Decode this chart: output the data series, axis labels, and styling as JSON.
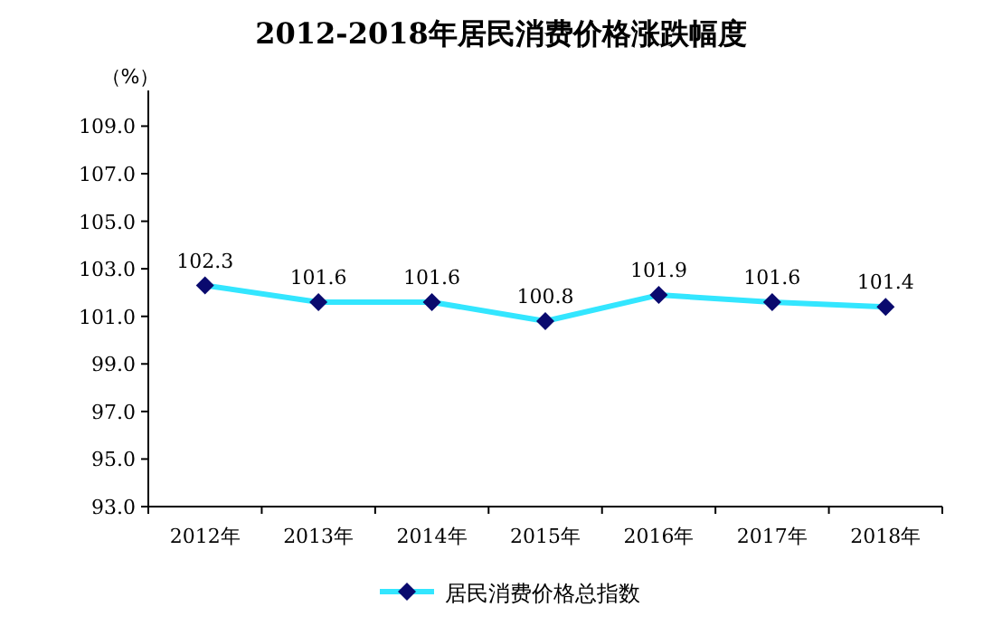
{
  "chart_data": {
    "type": "line",
    "title": "2012-2018年居民消费价格涨跌幅度",
    "ylabel": "（%）",
    "categories": [
      "2012年",
      "2013年",
      "2014年",
      "2015年",
      "2016年",
      "2017年",
      "2018年"
    ],
    "series": [
      {
        "name": "居民消费价格总指数",
        "color": "#33e6ff",
        "values": [
          102.3,
          101.6,
          101.6,
          100.8,
          101.9,
          101.6,
          101.4
        ]
      }
    ],
    "ylim": [
      93,
      110.5
    ],
    "yticks": [
      {
        "value": 93,
        "label": "93.0"
      },
      {
        "value": 95,
        "label": "95.0"
      },
      {
        "value": 97,
        "label": "97.0"
      },
      {
        "value": 99,
        "label": "99.0"
      },
      {
        "value": 101,
        "label": "101.0"
      },
      {
        "value": 103,
        "label": "103.0"
      },
      {
        "value": 105,
        "label": "105.0"
      },
      {
        "value": 107,
        "label": "107.0"
      },
      {
        "value": 109,
        "label": "109.0"
      }
    ],
    "data_labels": true,
    "marker": "diamond",
    "legend": "bottom",
    "grid": false
  }
}
